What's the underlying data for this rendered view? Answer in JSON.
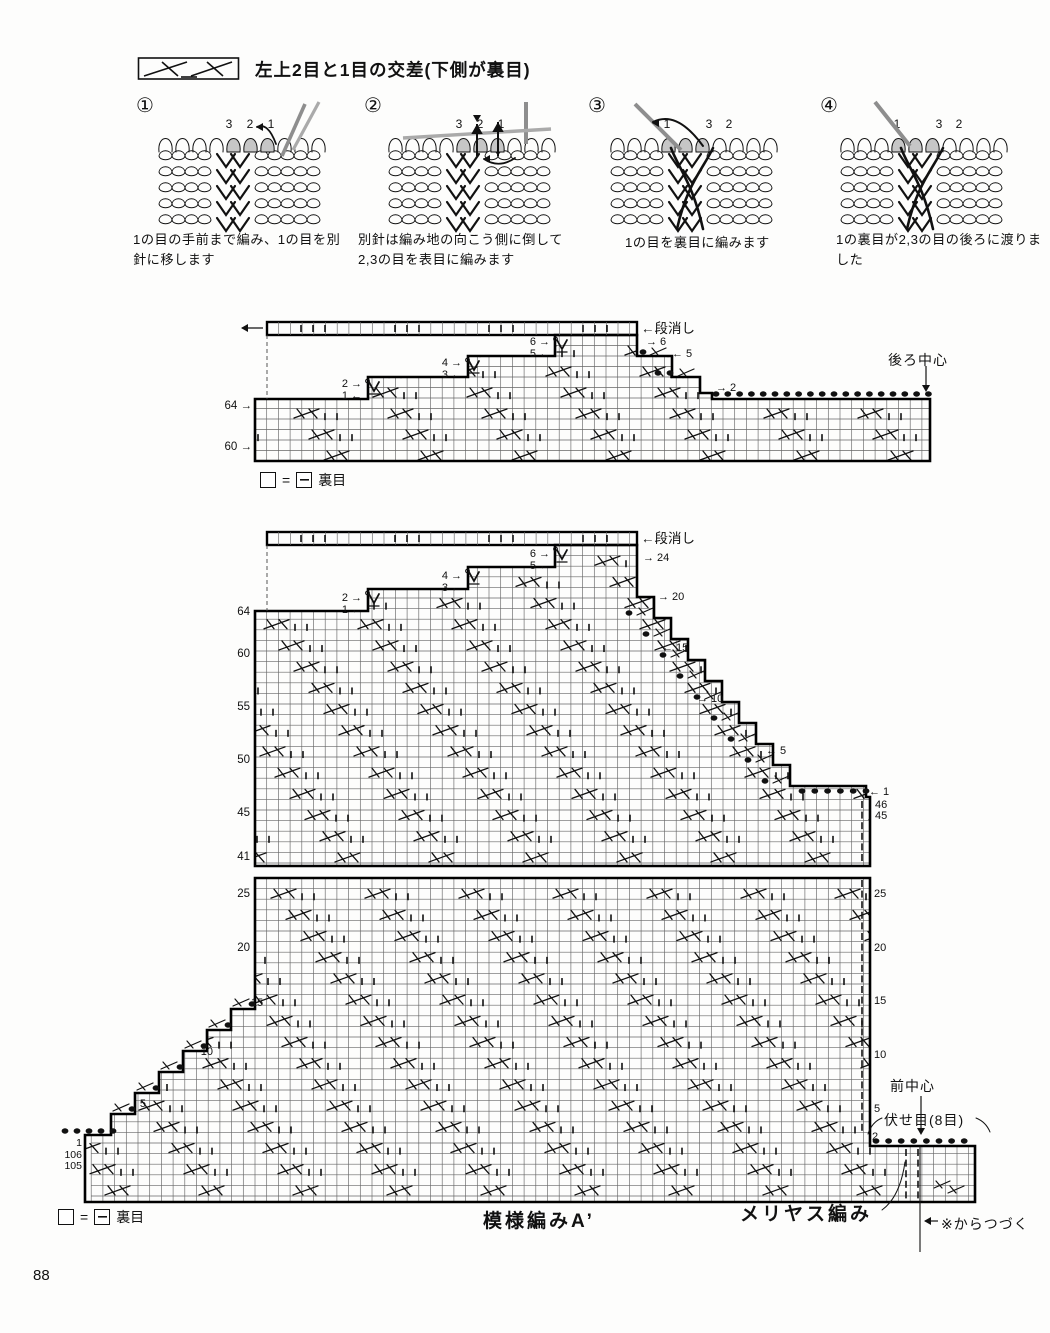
{
  "page": {
    "number": "88"
  },
  "header": {
    "title": "左上2目と1目の交差(下側が裏目)",
    "symbol_name": "cable-2-over-1-cross-purl-symbol"
  },
  "steps": [
    {
      "num": "①",
      "caption": "1の目の手前まで編み、1の目を別針に移します",
      "stitch_numbers": "3 2 1"
    },
    {
      "num": "②",
      "caption": "別針は編み地の向こう側に倒して2,3の目を表目に編みます",
      "stitch_numbers": "3 2 1"
    },
    {
      "num": "③",
      "caption": "1の目を裏目に編みます",
      "stitch_numbers": "1 3 2"
    },
    {
      "num": "④",
      "caption": "1の裏目が2,3の目の後ろに渡りました",
      "stitch_numbers": "1 3 2"
    }
  ],
  "chart1": {
    "dankeshi": "←段消し",
    "back_center": "後ろ中心",
    "left_step_labels": [
      "6 →",
      "5 ←",
      "4 →",
      "3 ←",
      "2 →",
      "1 ←"
    ],
    "right_step_labels": [
      "→ 6",
      "← 5",
      "→ 2"
    ],
    "left_row_labels": [
      "64 →",
      "60 →"
    ],
    "legend": {
      "eq": "=",
      "text": "裏目"
    }
  },
  "chart2": {
    "dankeshi": "←段消し",
    "left_step_labels": [
      "6 →",
      "5 ←",
      "4 →",
      "3 ←",
      "2 →",
      "1 ←"
    ],
    "upper_left_labels": [
      "64",
      "60",
      "55",
      "50",
      "45",
      "41"
    ],
    "upper_right_labels": [
      "→ 24",
      "→ 20",
      "← 15",
      "→ 10",
      "← 5",
      "← 1",
      "46",
      "45"
    ],
    "lower_left_labels": [
      "15",
      "10",
      "5"
    ],
    "lower_left_edge_labels": [
      "25",
      "20"
    ],
    "bottom_left_labels": [
      "1",
      "106",
      "105"
    ],
    "lower_right_labels": [
      "25",
      "20",
      "15",
      "10",
      "5",
      "2"
    ],
    "front_center": "前中心",
    "bind_off": "伏せ目(8目)",
    "pattern_label": "模様編みA’",
    "stockinette_label": "メリヤス編み",
    "continue_label": "※からつづく",
    "legend": {
      "eq": "=",
      "text": "裏目"
    }
  }
}
